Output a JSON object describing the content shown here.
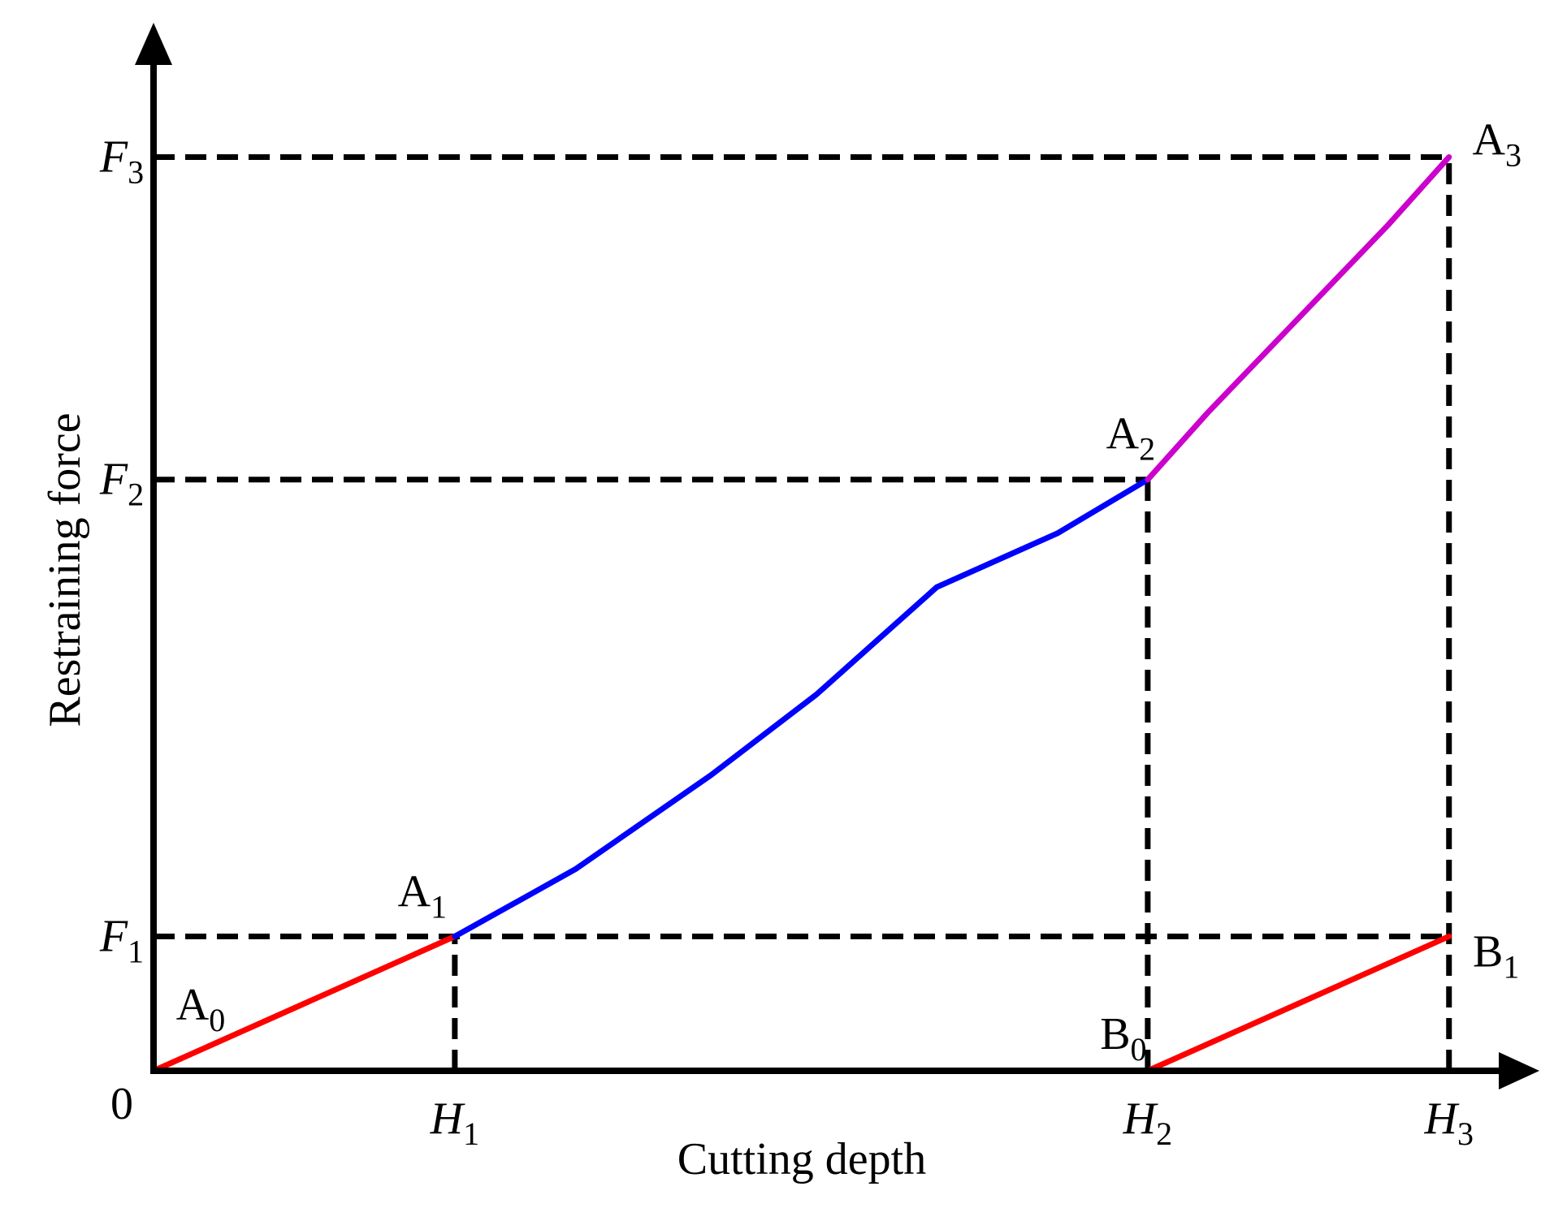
{
  "chart_data": {
    "type": "line",
    "title": "",
    "xlabel": "Cutting depth",
    "ylabel": "Restraining  force",
    "origin_label": "0",
    "x_ticks": [
      {
        "name": "H",
        "sub": "1",
        "value": 1.0
      },
      {
        "name": "H",
        "sub": "2",
        "value": 3.3
      },
      {
        "name": "H",
        "sub": "3",
        "value": 4.3
      }
    ],
    "y_ticks": [
      {
        "name": "F",
        "sub": "1",
        "value": 1.0
      },
      {
        "name": "F",
        "sub": "2",
        "value": 4.4
      },
      {
        "name": "F",
        "sub": "3",
        "value": 6.8
      }
    ],
    "xlim": [
      0,
      4.6
    ],
    "ylim": [
      0,
      7.8
    ],
    "grid": false,
    "series": [
      {
        "color": "#ff0000",
        "x": [
          0,
          0.3,
          0.5,
          1.0
        ],
        "y": [
          0,
          0.3,
          0.5,
          1.0
        ]
      },
      {
        "color": "#0000ff",
        "x": [
          1.0,
          1.4,
          1.85,
          2.2,
          2.6,
          3.0,
          3.3
        ],
        "y": [
          1.0,
          1.5,
          2.2,
          2.8,
          3.6,
          4.0,
          4.4
        ]
      },
      {
        "color": "#cc00cc",
        "x": [
          3.3,
          3.5,
          3.8,
          4.1,
          4.3
        ],
        "y": [
          4.4,
          4.9,
          5.6,
          6.3,
          6.8
        ]
      },
      {
        "color": "#ff0000",
        "x": [
          3.3,
          3.6,
          3.8,
          4.3
        ],
        "y": [
          0,
          0.3,
          0.5,
          1.0
        ]
      }
    ],
    "point_labels": [
      {
        "name": "A",
        "sub": "0",
        "x": 0,
        "y": 0
      },
      {
        "name": "A",
        "sub": "1",
        "x": 1.0,
        "y": 1.0
      },
      {
        "name": "A",
        "sub": "2",
        "x": 3.3,
        "y": 4.4
      },
      {
        "name": "A",
        "sub": "3",
        "x": 4.3,
        "y": 6.8
      },
      {
        "name": "B",
        "sub": "0",
        "x": 3.3,
        "y": 0
      },
      {
        "name": "B",
        "sub": "1",
        "x": 4.3,
        "y": 1.0
      }
    ],
    "reference_lines": [
      {
        "from": [
          0,
          1.0
        ],
        "to": [
          4.3,
          1.0
        ]
      },
      {
        "from": [
          0,
          4.4
        ],
        "to": [
          3.3,
          4.4
        ]
      },
      {
        "from": [
          0,
          6.8
        ],
        "to": [
          4.3,
          6.8
        ]
      },
      {
        "from": [
          1.0,
          0
        ],
        "to": [
          1.0,
          1.0
        ]
      },
      {
        "from": [
          3.3,
          0
        ],
        "to": [
          3.3,
          4.4
        ]
      },
      {
        "from": [
          4.3,
          0
        ],
        "to": [
          4.3,
          6.8
        ]
      }
    ]
  }
}
